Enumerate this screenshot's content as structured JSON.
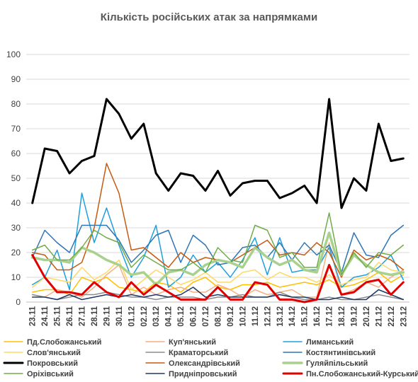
{
  "chart_data": {
    "type": "line",
    "title": "Кількість російських атак за напрямками",
    "xlabel": "",
    "ylabel": "",
    "ylim": [
      0,
      100
    ],
    "yticks": [
      0,
      10,
      20,
      30,
      40,
      50,
      60,
      70,
      80,
      90,
      100
    ],
    "grid": "horizontal",
    "legend_position": "bottom",
    "categories": [
      "23.11",
      "24.11",
      "25.11",
      "26.11",
      "27.11",
      "28.11",
      "29.11",
      "30.11",
      "01.12",
      "02.12",
      "03.12",
      "04.12",
      "05.12",
      "06.12",
      "07.12",
      "08.12",
      "09.12",
      "10.12",
      "11.12",
      "12.12",
      "13.12",
      "14.12",
      "15.12",
      "16.12",
      "17.12",
      "18.12",
      "19.12",
      "20.12",
      "21.12",
      "22.12",
      "23.12"
    ],
    "series": [
      {
        "name": "Пд.Слобожанський",
        "color": "#FFC000",
        "width": 1.5,
        "values": [
          4,
          5,
          5,
          3,
          10,
          8,
          10,
          6,
          5,
          4,
          8,
          7,
          4,
          8,
          10,
          6,
          5,
          7,
          7,
          8,
          6,
          7,
          8,
          7,
          9,
          6,
          7,
          9,
          12,
          8,
          11
        ]
      },
      {
        "name": "Куп'янський",
        "color": "#F4B183",
        "width": 1.5,
        "values": [
          3,
          2,
          5,
          4,
          2,
          6,
          11,
          15,
          3,
          6,
          3,
          5,
          6,
          4,
          4,
          7,
          5,
          2,
          5,
          3,
          4,
          5,
          2,
          2,
          24,
          3,
          5,
          8,
          6,
          10,
          13
        ]
      },
      {
        "name": "Лиманський",
        "color": "#1FA0DB",
        "width": 1.5,
        "values": [
          7,
          10,
          21,
          5,
          44,
          24,
          38,
          23,
          10,
          18,
          31,
          6,
          10,
          19,
          12,
          16,
          10,
          17,
          26,
          11,
          26,
          12,
          13,
          13,
          22,
          6,
          10,
          11,
          14,
          19,
          9
        ]
      },
      {
        "name": "Слов'янський",
        "color": "#FFD966",
        "width": 1.5,
        "values": [
          6,
          10,
          9,
          8,
          14,
          9,
          12,
          17,
          5,
          9,
          13,
          10,
          7,
          9,
          12,
          8,
          8,
          12,
          13,
          9,
          12,
          10,
          10,
          8,
          11,
          7,
          9,
          10,
          16,
          13,
          12
        ]
      },
      {
        "name": "Краматорський",
        "color": "#8C8C8C",
        "width": 1.5,
        "values": [
          3,
          2,
          1,
          2,
          3,
          3,
          4,
          3,
          2,
          2,
          1,
          2,
          2,
          2,
          1,
          2,
          2,
          3,
          2,
          2,
          4,
          2,
          1,
          1,
          2,
          1,
          1,
          2,
          3,
          2,
          1
        ]
      },
      {
        "name": "Костянтинівський",
        "color": "#2E75B6",
        "width": 1.5,
        "values": [
          18,
          29,
          24,
          20,
          31,
          31,
          31,
          25,
          16,
          21,
          27,
          29,
          16,
          27,
          23,
          15,
          16,
          22,
          23,
          18,
          24,
          17,
          24,
          19,
          23,
          12,
          28,
          19,
          18,
          27,
          31
        ]
      },
      {
        "name": "Покровський",
        "color": "#000000",
        "width": 3,
        "values": [
          40,
          62,
          61,
          52,
          57,
          59,
          82,
          76,
          66,
          72,
          52,
          45,
          52,
          51,
          45,
          53,
          43,
          48,
          49,
          49,
          42,
          44,
          47,
          40,
          82,
          38,
          50,
          45,
          72,
          57,
          58
        ]
      },
      {
        "name": "Олександрівський",
        "color": "#C55A11",
        "width": 1.5,
        "values": [
          20,
          19,
          13,
          13,
          16,
          30,
          56,
          44,
          21,
          22,
          18,
          14,
          20,
          16,
          18,
          17,
          16,
          19,
          22,
          25,
          19,
          20,
          19,
          24,
          20,
          10,
          21,
          17,
          19,
          17,
          13
        ]
      },
      {
        "name": "Гуляйпільський",
        "color": "#A9D18E",
        "width": 3.5,
        "values": [
          18,
          17,
          17,
          16,
          22,
          20,
          17,
          15,
          11,
          12,
          7,
          12,
          13,
          11,
          15,
          17,
          16,
          14,
          22,
          18,
          15,
          17,
          13,
          12,
          28,
          11,
          19,
          15,
          12,
          11,
          12
        ]
      },
      {
        "name": "Оріхівський",
        "color": "#70AD47",
        "width": 1.5,
        "values": [
          21,
          23,
          17,
          17,
          22,
          29,
          26,
          24,
          14,
          19,
          16,
          13,
          13,
          16,
          12,
          22,
          17,
          16,
          31,
          29,
          18,
          20,
          14,
          14,
          36,
          11,
          20,
          14,
          20,
          19,
          23
        ]
      },
      {
        "name": "Придніпровський",
        "color": "#1F3864",
        "width": 1.5,
        "values": [
          2,
          2,
          1,
          3,
          1,
          2,
          3,
          2,
          3,
          2,
          3,
          2,
          3,
          6,
          2,
          3,
          2,
          2,
          2,
          2,
          3,
          2,
          2,
          1,
          1,
          2,
          1,
          1,
          5,
          3,
          1
        ]
      },
      {
        "name": "Пн.Слобожанський-Курський",
        "color": "#E00000",
        "width": 3,
        "values": [
          19,
          10,
          4,
          4,
          3,
          8,
          4,
          2,
          8,
          3,
          7,
          4,
          1,
          1,
          1,
          6,
          1,
          1,
          8,
          7,
          1,
          1,
          0,
          1,
          15,
          3,
          4,
          8,
          9,
          3,
          8
        ]
      }
    ]
  }
}
